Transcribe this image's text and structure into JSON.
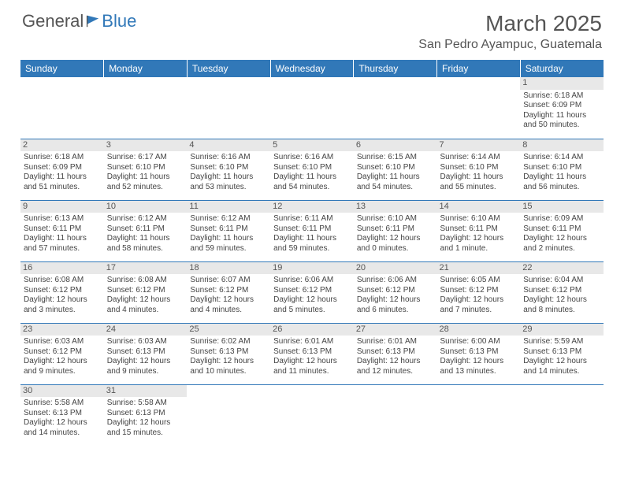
{
  "logo": {
    "dark": "General",
    "blue": "Blue"
  },
  "title": "March 2025",
  "location": "San Pedro Ayampuc, Guatemala",
  "colors": {
    "headerBg": "#3178b8",
    "headerText": "#ffffff",
    "dayNumBg": "#e8e8e8",
    "cellBorder": "#3178b8",
    "bodyText": "#444444",
    "titleText": "#555555"
  },
  "dayHeaders": [
    "Sunday",
    "Monday",
    "Tuesday",
    "Wednesday",
    "Thursday",
    "Friday",
    "Saturday"
  ],
  "weeks": [
    [
      null,
      null,
      null,
      null,
      null,
      null,
      {
        "n": "1",
        "sr": "6:18 AM",
        "ss": "6:09 PM",
        "dl": "11 hours and 50 minutes."
      }
    ],
    [
      {
        "n": "2",
        "sr": "6:18 AM",
        "ss": "6:09 PM",
        "dl": "11 hours and 51 minutes."
      },
      {
        "n": "3",
        "sr": "6:17 AM",
        "ss": "6:10 PM",
        "dl": "11 hours and 52 minutes."
      },
      {
        "n": "4",
        "sr": "6:16 AM",
        "ss": "6:10 PM",
        "dl": "11 hours and 53 minutes."
      },
      {
        "n": "5",
        "sr": "6:16 AM",
        "ss": "6:10 PM",
        "dl": "11 hours and 54 minutes."
      },
      {
        "n": "6",
        "sr": "6:15 AM",
        "ss": "6:10 PM",
        "dl": "11 hours and 54 minutes."
      },
      {
        "n": "7",
        "sr": "6:14 AM",
        "ss": "6:10 PM",
        "dl": "11 hours and 55 minutes."
      },
      {
        "n": "8",
        "sr": "6:14 AM",
        "ss": "6:10 PM",
        "dl": "11 hours and 56 minutes."
      }
    ],
    [
      {
        "n": "9",
        "sr": "6:13 AM",
        "ss": "6:11 PM",
        "dl": "11 hours and 57 minutes."
      },
      {
        "n": "10",
        "sr": "6:12 AM",
        "ss": "6:11 PM",
        "dl": "11 hours and 58 minutes."
      },
      {
        "n": "11",
        "sr": "6:12 AM",
        "ss": "6:11 PM",
        "dl": "11 hours and 59 minutes."
      },
      {
        "n": "12",
        "sr": "6:11 AM",
        "ss": "6:11 PM",
        "dl": "11 hours and 59 minutes."
      },
      {
        "n": "13",
        "sr": "6:10 AM",
        "ss": "6:11 PM",
        "dl": "12 hours and 0 minutes."
      },
      {
        "n": "14",
        "sr": "6:10 AM",
        "ss": "6:11 PM",
        "dl": "12 hours and 1 minute."
      },
      {
        "n": "15",
        "sr": "6:09 AM",
        "ss": "6:11 PM",
        "dl": "12 hours and 2 minutes."
      }
    ],
    [
      {
        "n": "16",
        "sr": "6:08 AM",
        "ss": "6:12 PM",
        "dl": "12 hours and 3 minutes."
      },
      {
        "n": "17",
        "sr": "6:08 AM",
        "ss": "6:12 PM",
        "dl": "12 hours and 4 minutes."
      },
      {
        "n": "18",
        "sr": "6:07 AM",
        "ss": "6:12 PM",
        "dl": "12 hours and 4 minutes."
      },
      {
        "n": "19",
        "sr": "6:06 AM",
        "ss": "6:12 PM",
        "dl": "12 hours and 5 minutes."
      },
      {
        "n": "20",
        "sr": "6:06 AM",
        "ss": "6:12 PM",
        "dl": "12 hours and 6 minutes."
      },
      {
        "n": "21",
        "sr": "6:05 AM",
        "ss": "6:12 PM",
        "dl": "12 hours and 7 minutes."
      },
      {
        "n": "22",
        "sr": "6:04 AM",
        "ss": "6:12 PM",
        "dl": "12 hours and 8 minutes."
      }
    ],
    [
      {
        "n": "23",
        "sr": "6:03 AM",
        "ss": "6:12 PM",
        "dl": "12 hours and 9 minutes."
      },
      {
        "n": "24",
        "sr": "6:03 AM",
        "ss": "6:13 PM",
        "dl": "12 hours and 9 minutes."
      },
      {
        "n": "25",
        "sr": "6:02 AM",
        "ss": "6:13 PM",
        "dl": "12 hours and 10 minutes."
      },
      {
        "n": "26",
        "sr": "6:01 AM",
        "ss": "6:13 PM",
        "dl": "12 hours and 11 minutes."
      },
      {
        "n": "27",
        "sr": "6:01 AM",
        "ss": "6:13 PM",
        "dl": "12 hours and 12 minutes."
      },
      {
        "n": "28",
        "sr": "6:00 AM",
        "ss": "6:13 PM",
        "dl": "12 hours and 13 minutes."
      },
      {
        "n": "29",
        "sr": "5:59 AM",
        "ss": "6:13 PM",
        "dl": "12 hours and 14 minutes."
      }
    ],
    [
      {
        "n": "30",
        "sr": "5:58 AM",
        "ss": "6:13 PM",
        "dl": "12 hours and 14 minutes."
      },
      {
        "n": "31",
        "sr": "5:58 AM",
        "ss": "6:13 PM",
        "dl": "12 hours and 15 minutes."
      },
      null,
      null,
      null,
      null,
      null
    ]
  ],
  "labels": {
    "sunrise": "Sunrise: ",
    "sunset": "Sunset: ",
    "daylight": "Daylight: "
  }
}
